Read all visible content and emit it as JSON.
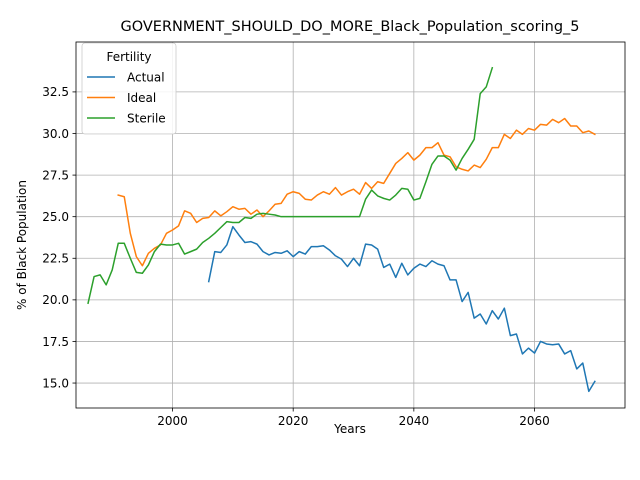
{
  "chart_data": {
    "type": "line",
    "title": "GOVERNMENT_SHOULD_DO_MORE_Black_Population_scoring_5",
    "xlabel": "Years",
    "ylabel": "% of Black Population",
    "xlim": [
      1984,
      2075
    ],
    "ylim": [
      13.5,
      35.5
    ],
    "xticks": [
      2000,
      2020,
      2040,
      2060
    ],
    "yticks": [
      15.0,
      17.5,
      20.0,
      22.5,
      25.0,
      27.5,
      30.0,
      32.5
    ],
    "ytick_labels": [
      "15.0",
      "17.5",
      "20.0",
      "22.5",
      "25.0",
      "27.5",
      "30.0",
      "32.5"
    ],
    "grid": true,
    "legend": {
      "title": "Fertility",
      "position": "top-left"
    },
    "series": [
      {
        "name": "Actual",
        "color": "#1f77b4",
        "x": [
          2006,
          2007,
          2008,
          2009,
          2010,
          2011,
          2012,
          2013,
          2014,
          2015,
          2016,
          2017,
          2018,
          2019,
          2020,
          2021,
          2022,
          2023,
          2024,
          2025,
          2026,
          2027,
          2028,
          2029,
          2030,
          2031,
          2032,
          2033,
          2034,
          2035,
          2036,
          2037,
          2038,
          2039,
          2040,
          2041,
          2042,
          2043,
          2044,
          2045,
          2046,
          2047,
          2048,
          2049,
          2050,
          2051,
          2052,
          2053,
          2054,
          2055,
          2056,
          2057,
          2058,
          2059,
          2060,
          2061,
          2062,
          2063,
          2064,
          2065,
          2066,
          2067,
          2068,
          2069,
          2070
        ],
        "y": [
          21.1,
          22.9,
          22.85,
          23.3,
          24.4,
          23.9,
          23.45,
          23.5,
          23.35,
          22.9,
          22.7,
          22.85,
          22.8,
          22.95,
          22.6,
          22.9,
          22.75,
          23.2,
          23.2,
          23.25,
          23.0,
          22.65,
          22.45,
          22.0,
          22.5,
          22.05,
          23.35,
          23.3,
          23.05,
          21.95,
          22.15,
          21.35,
          22.2,
          21.5,
          21.9,
          22.15,
          22.0,
          22.35,
          22.15,
          22.05,
          21.2,
          21.2,
          19.9,
          20.45,
          18.9,
          19.15,
          18.55,
          19.35,
          18.85,
          19.5,
          17.85,
          17.95,
          16.75,
          17.1,
          16.8,
          17.5,
          17.35,
          17.3,
          17.35,
          16.75,
          16.95,
          15.85,
          16.2,
          14.5,
          15.1
        ]
      },
      {
        "name": "Ideal",
        "color": "#ff7f0e",
        "x": [
          1991,
          1992,
          1993,
          1994,
          1995,
          1996,
          1997,
          1998,
          1999,
          2000,
          2001,
          2002,
          2003,
          2004,
          2005,
          2006,
          2007,
          2008,
          2009,
          2010,
          2011,
          2012,
          2013,
          2014,
          2015,
          2016,
          2017,
          2018,
          2019,
          2020,
          2021,
          2022,
          2023,
          2024,
          2025,
          2026,
          2027,
          2028,
          2029,
          2030,
          2031,
          2032,
          2033,
          2034,
          2035,
          2036,
          2037,
          2038,
          2039,
          2040,
          2041,
          2042,
          2043,
          2044,
          2045,
          2046,
          2047,
          2048,
          2049,
          2050,
          2051,
          2052,
          2053,
          2054,
          2055,
          2056,
          2057,
          2058,
          2059,
          2060,
          2061,
          2062,
          2063,
          2064,
          2065,
          2066,
          2067,
          2068,
          2069,
          2070
        ],
        "y": [
          26.3,
          26.2,
          24.0,
          22.6,
          22.05,
          22.8,
          23.1,
          23.3,
          24.0,
          24.2,
          24.45,
          25.35,
          25.2,
          24.65,
          24.9,
          24.95,
          25.35,
          25.05,
          25.3,
          25.6,
          25.45,
          25.5,
          25.15,
          25.4,
          25.0,
          25.35,
          25.75,
          25.8,
          26.35,
          26.5,
          26.4,
          26.05,
          26.0,
          26.3,
          26.5,
          26.35,
          26.75,
          26.3,
          26.5,
          26.65,
          26.35,
          27.05,
          26.7,
          27.1,
          27.0,
          27.6,
          28.2,
          28.5,
          28.85,
          28.4,
          28.7,
          29.15,
          29.15,
          29.45,
          28.7,
          28.6,
          28.0,
          27.85,
          27.75,
          28.1,
          27.95,
          28.45,
          29.15,
          29.15,
          29.95,
          29.7,
          30.2,
          29.95,
          30.3,
          30.2,
          30.55,
          30.5,
          30.85,
          30.65,
          30.9,
          30.45,
          30.45,
          30.05,
          30.15,
          29.95
        ]
      },
      {
        "name": "Sterile",
        "color": "#2ca02c",
        "x": [
          1986,
          1987,
          1988,
          1989,
          1990,
          1991,
          1992,
          1993,
          1994,
          1995,
          1996,
          1997,
          1998,
          1999,
          2000,
          2001,
          2002,
          2003,
          2004,
          2005,
          2006,
          2007,
          2008,
          2009,
          2010,
          2011,
          2012,
          2013,
          2014,
          2015,
          2016,
          2017,
          2018,
          2019,
          2020,
          2021,
          2022,
          2023,
          2024,
          2025,
          2026,
          2027,
          2028,
          2029,
          2030,
          2031,
          2032,
          2033,
          2034,
          2035,
          2036,
          2037,
          2038,
          2039,
          2040,
          2041,
          2042,
          2043,
          2044,
          2045,
          2046,
          2047,
          2048,
          2049,
          2050,
          2051,
          2052,
          2053
        ],
        "y": [
          19.8,
          21.4,
          21.5,
          20.9,
          21.8,
          23.4,
          23.4,
          22.5,
          21.65,
          21.6,
          22.1,
          22.9,
          23.35,
          23.3,
          23.3,
          23.4,
          22.75,
          22.9,
          23.05,
          23.45,
          23.7,
          24.0,
          24.35,
          24.7,
          24.65,
          24.65,
          24.95,
          24.9,
          25.15,
          25.2,
          25.15,
          25.1,
          25.0,
          25.0,
          25.0,
          25.0,
          25.0,
          25.0,
          25.0,
          25.0,
          25.0,
          25.0,
          25.0,
          25.0,
          25.0,
          25.0,
          26.05,
          26.6,
          26.25,
          26.1,
          26.0,
          26.3,
          26.7,
          26.65,
          26.0,
          26.1,
          27.1,
          28.15,
          28.65,
          28.65,
          28.4,
          27.8,
          28.5,
          29.05,
          29.65,
          32.4,
          32.8,
          33.95
        ]
      }
    ]
  }
}
